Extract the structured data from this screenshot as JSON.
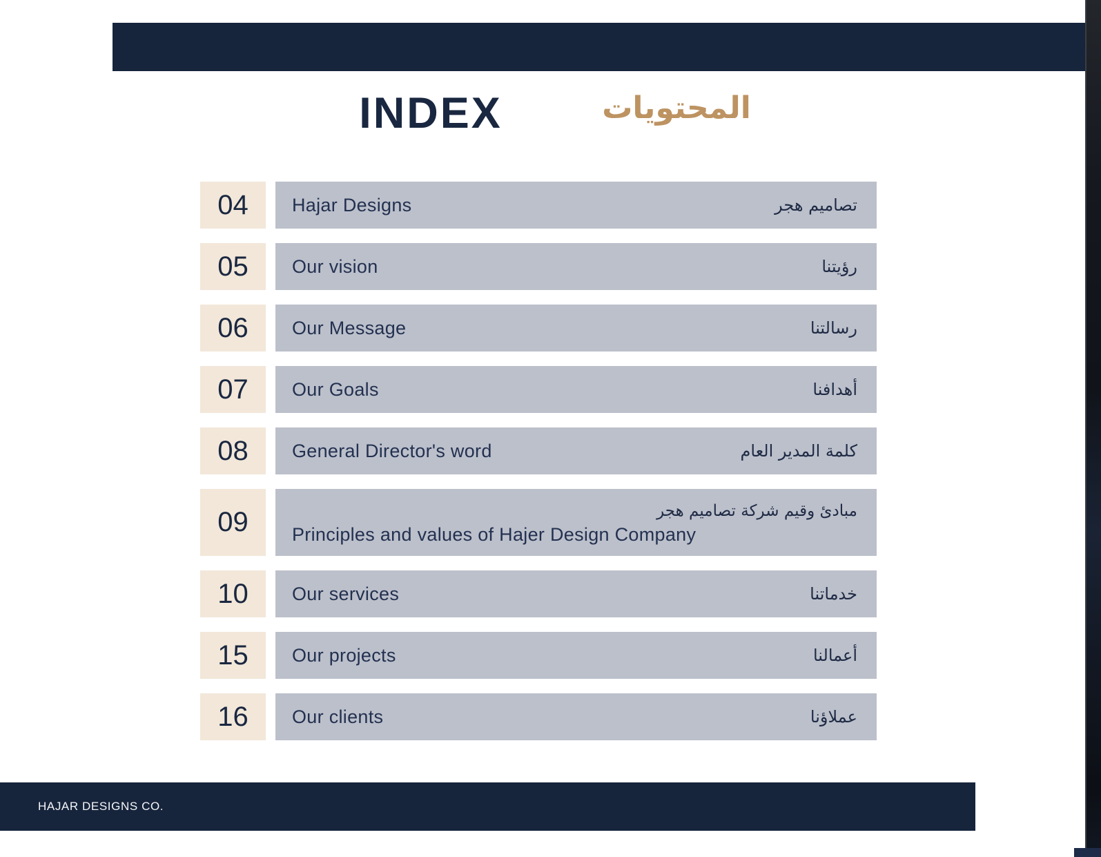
{
  "page": {
    "title_en": "INDEX",
    "title_ar": "المحتويات",
    "footer_text": "HAJAR DESIGNS CO."
  },
  "colors": {
    "navy_band": "#16243c",
    "number_box_beige": "#f2e7d9",
    "row_bar_gray": "#bcc0cb",
    "title_gold": "#bd9362",
    "text_navy": "#233150"
  },
  "index_items": [
    {
      "page_no": "04",
      "label_en": "Hajar Designs",
      "label_ar": "تصاميم هجر"
    },
    {
      "page_no": "05",
      "label_en": "Our vision",
      "label_ar": "رؤيتنا"
    },
    {
      "page_no": "06",
      "label_en": "Our Message",
      "label_ar": "رسالتنا"
    },
    {
      "page_no": "07",
      "label_en": "Our Goals",
      "label_ar": "أهدافنا"
    },
    {
      "page_no": "08",
      "label_en": "General Director's word",
      "label_ar": "كلمة المدير العام"
    },
    {
      "page_no": "09",
      "label_en": "Principles and values of Hajer Design Company",
      "label_ar": "مبادئ وقيم شركة تصاميم هجر",
      "tall": true
    },
    {
      "page_no": "10",
      "label_en": "Our services",
      "label_ar": "خدماتنا"
    },
    {
      "page_no": "15",
      "label_en": "Our projects",
      "label_ar": "أعمالنا"
    },
    {
      "page_no": "16",
      "label_en": "Our clients",
      "label_ar": "عملاؤنا"
    }
  ]
}
